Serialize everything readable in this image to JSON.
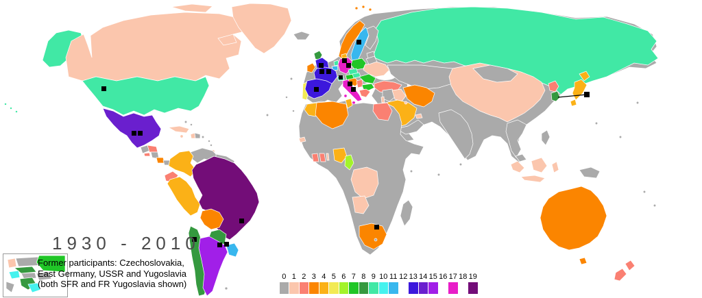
{
  "title": "1930 - 2010",
  "note": {
    "line1": "Former participants: Czechoslovakia,",
    "line2": "East Germany, USSR and Yugoslavia",
    "line3": "(both SFR and FR Yugoslavia shown)"
  },
  "legend": {
    "values": [
      "0",
      "1",
      "2",
      "3",
      "4",
      "5",
      "6",
      "7",
      "8",
      "9",
      "10",
      "11",
      "12",
      "13",
      "14",
      "15",
      "16",
      "17",
      "18",
      "19"
    ],
    "colors": [
      "#aaaaaa",
      "#fbc6ad",
      "#fa8072",
      "#fb8500",
      "#fbb117",
      "#f2ea54",
      "#a3f32a",
      "#20c627",
      "#35993f",
      "#41e8a5",
      "#45f2ee",
      "#38b7ee",
      "#ffffff",
      "#3c18dc",
      "#6a1fce",
      "#a11fe8",
      "#ffffff",
      "#e81ec8",
      "#ffffff",
      "#730d78"
    ]
  },
  "colors": {
    "land_default": "#aaaaaa",
    "ocean": "#ffffff",
    "host_marker": "#000000",
    "title_text": "#4a4a4a"
  },
  "map_data": {
    "type": "choropleth",
    "metric": "FIFA World Cup appearances 1930-2010",
    "countries": {
      "canada": {
        "label": "Canada",
        "appearances": 1
      },
      "usa": {
        "label": "United States",
        "appearances": 9
      },
      "alaska": {
        "label": "United States (Alaska)",
        "appearances": 9
      },
      "hawaii": {
        "label": "United States (Hawaii)",
        "appearances": 9
      },
      "greenland": {
        "label": "Greenland",
        "appearances": 1
      },
      "mexico": {
        "label": "Mexico",
        "appearances": 14
      },
      "cuba": {
        "label": "Cuba",
        "appearances": 1
      },
      "haiti": {
        "label": "Haiti",
        "appearances": 1
      },
      "jamaica": {
        "label": "Jamaica",
        "appearances": 1
      },
      "trinidad": {
        "label": "Trinidad and Tobago",
        "appearances": 1
      },
      "honduras": {
        "label": "Honduras",
        "appearances": 2
      },
      "el-salvador": {
        "label": "El Salvador",
        "appearances": 2
      },
      "costa-rica": {
        "label": "Costa Rica",
        "appearances": 3
      },
      "colombia": {
        "label": "Colombia",
        "appearances": 4
      },
      "venezuela": {
        "label": "Venezuela",
        "appearances": 0
      },
      "ecuador": {
        "label": "Ecuador",
        "appearances": 2
      },
      "peru": {
        "label": "Peru",
        "appearances": 4
      },
      "brazil": {
        "label": "Brazil",
        "appearances": 19
      },
      "bolivia": {
        "label": "Bolivia",
        "appearances": 3
      },
      "paraguay": {
        "label": "Paraguay",
        "appearances": 8
      },
      "chile": {
        "label": "Chile",
        "appearances": 8
      },
      "argentina": {
        "label": "Argentina",
        "appearances": 15
      },
      "uruguay": {
        "label": "Uruguay",
        "appearances": 11
      },
      "iceland": {
        "label": "Iceland",
        "appearances": 0
      },
      "ireland": {
        "label": "Republic of Ireland",
        "appearances": 3
      },
      "scotland": {
        "label": "Scotland",
        "appearances": 8
      },
      "england": {
        "label": "England",
        "appearances": 13
      },
      "portugal": {
        "label": "Portugal",
        "appearances": 5
      },
      "spain": {
        "label": "Spain",
        "appearances": 13
      },
      "france": {
        "label": "France",
        "appearances": 13
      },
      "belgium": {
        "label": "Belgium",
        "appearances": 11
      },
      "netherlands": {
        "label": "Netherlands",
        "appearances": 9
      },
      "germany": {
        "label": "Germany",
        "appearances": 17
      },
      "denmark": {
        "label": "Denmark",
        "appearances": 4
      },
      "norway": {
        "label": "Norway",
        "appearances": 3
      },
      "sweden": {
        "label": "Sweden",
        "appearances": 11
      },
      "finland": {
        "label": "Finland",
        "appearances": 0
      },
      "poland": {
        "label": "Poland",
        "appearances": 7
      },
      "czech": {
        "label": "Czech Republic",
        "appearances": 9
      },
      "austria": {
        "label": "Austria",
        "appearances": 7
      },
      "switzerland": {
        "label": "Switzerland",
        "appearances": 9
      },
      "hungary": {
        "label": "Hungary",
        "appearances": 9
      },
      "italy": {
        "label": "Italy",
        "appearances": 17
      },
      "croatia": {
        "label": "Croatia",
        "appearances": 3
      },
      "serbia": {
        "label": "Serbia",
        "appearances": 2
      },
      "romania": {
        "label": "Romania",
        "appearances": 7
      },
      "bulgaria": {
        "label": "Bulgaria",
        "appearances": 7
      },
      "greece": {
        "label": "Greece",
        "appearances": 2
      },
      "turkey": {
        "label": "Turkey",
        "appearances": 2
      },
      "ukraine": {
        "label": "Ukraine",
        "appearances": 1
      },
      "russia": {
        "label": "Russia (incl. USSR)",
        "appearances": 9
      },
      "morocco": {
        "label": "Morocco",
        "appearances": 4
      },
      "algeria": {
        "label": "Algeria",
        "appearances": 3
      },
      "tunisia": {
        "label": "Tunisia",
        "appearances": 4
      },
      "egypt": {
        "label": "Egypt",
        "appearances": 2
      },
      "senegal": {
        "label": "Senegal",
        "appearances": 1
      },
      "ivory-coast": {
        "label": "Ivory Coast",
        "appearances": 2
      },
      "ghana": {
        "label": "Ghana",
        "appearances": 2
      },
      "togo": {
        "label": "Togo",
        "appearances": 1
      },
      "nigeria": {
        "label": "Nigeria",
        "appearances": 4
      },
      "cameroon": {
        "label": "Cameroon",
        "appearances": 6
      },
      "dr-congo": {
        "label": "DR Congo",
        "appearances": 1
      },
      "angola": {
        "label": "Angola",
        "appearances": 1
      },
      "south-africa": {
        "label": "South Africa",
        "appearances": 3
      },
      "israel": {
        "label": "Israel",
        "appearances": 1
      },
      "iraq": {
        "label": "Iraq",
        "appearances": 1
      },
      "saudi-arabia": {
        "label": "Saudi Arabia",
        "appearances": 4
      },
      "iran": {
        "label": "Iran",
        "appearances": 3
      },
      "kuwait": {
        "label": "Kuwait",
        "appearances": 1
      },
      "uae": {
        "label": "United Arab Emirates",
        "appearances": 1
      },
      "china": {
        "label": "China",
        "appearances": 1
      },
      "mongolia": {
        "label": "Mongolia",
        "appearances": 0
      },
      "india": {
        "label": "India",
        "appearances": 0
      },
      "north-korea": {
        "label": "North Korea",
        "appearances": 2
      },
      "south-korea": {
        "label": "South Korea",
        "appearances": 8
      },
      "japan": {
        "label": "Japan",
        "appearances": 4
      },
      "indonesia": {
        "label": "Indonesia",
        "appearances": 1
      },
      "australia": {
        "label": "Australia",
        "appearances": 3
      },
      "new-zealand": {
        "label": "New Zealand",
        "appearances": 2
      }
    },
    "host_markers": [
      {
        "country": "Uruguay",
        "squares": 1
      },
      {
        "country": "Italy",
        "squares": 2
      },
      {
        "country": "France",
        "squares": 2
      },
      {
        "country": "Brazil",
        "squares": 1
      },
      {
        "country": "Switzerland",
        "squares": 1
      },
      {
        "country": "Sweden",
        "squares": 1
      },
      {
        "country": "Chile",
        "squares": 1
      },
      {
        "country": "England",
        "squares": 1
      },
      {
        "country": "Mexico",
        "squares": 2
      },
      {
        "country": "Germany",
        "squares": 2
      },
      {
        "country": "Argentina",
        "squares": 1
      },
      {
        "country": "Spain",
        "squares": 1
      },
      {
        "country": "USA",
        "squares": 1
      },
      {
        "country": "South Korea / Japan",
        "squares": 1
      },
      {
        "country": "South Africa",
        "squares": 1
      }
    ],
    "inset_regions": [
      {
        "name": "East Germany",
        "color": "#fbc6ad"
      },
      {
        "name": "USSR",
        "color": "#20c627"
      },
      {
        "name": "Czechoslovakia",
        "color": "#35993f"
      },
      {
        "name": "SFR Yugoslavia",
        "color": "#35993f"
      },
      {
        "name": "FR Yugoslavia",
        "color": "#45f2ee"
      }
    ]
  }
}
